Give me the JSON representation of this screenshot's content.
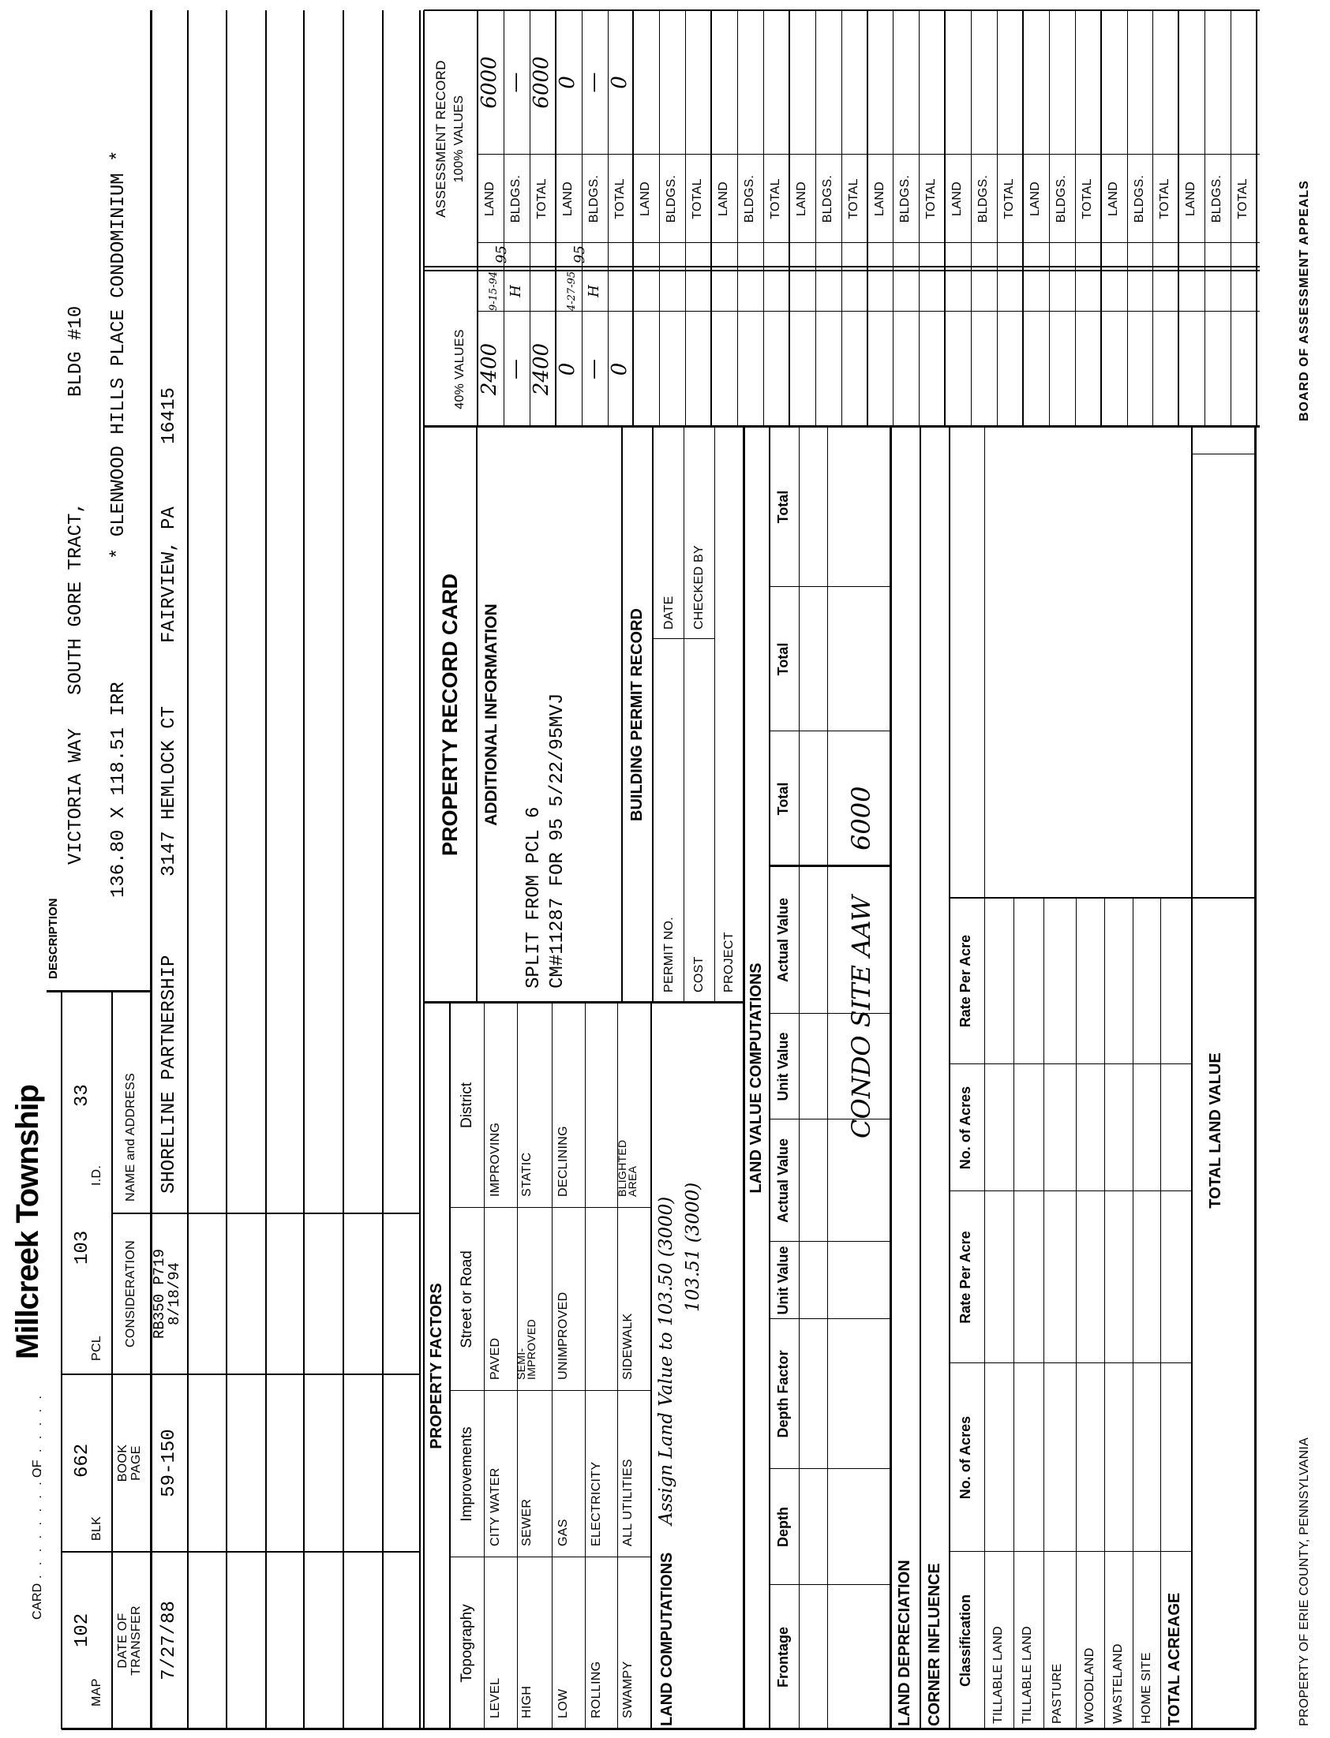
{
  "header": {
    "card_label": "CARD",
    "of_label": "OF",
    "township": "Millcreek Township"
  },
  "ids": {
    "map_label": "MAP",
    "map": "102",
    "blk_label": "BLK",
    "blk": "662",
    "pcl_label": "PCL",
    "pcl": "103",
    "id_label": "I.D.",
    "id": "33"
  },
  "transfer_headers": {
    "date": "DATE OF\nTRANSFER",
    "book_page": "BOOK\nPAGE",
    "consideration": "CONSIDERATION",
    "name_address": "NAME and ADDRESS"
  },
  "transfers": [
    {
      "date": "7/27/88",
      "book_page": "59-150",
      "consideration": "RB350 P719\n8/18/94",
      "name": "SHORELINE PARTNERSHIP",
      "street": "3147 HEMLOCK CT",
      "city": "FAIRVIEW, PA",
      "zip": "16415"
    }
  ],
  "description": {
    "label": "DESCRIPTION",
    "line1": [
      "VICTORIA WAY",
      "SOUTH GORE TRACT,",
      "BLDG #10"
    ],
    "line2": [
      "136.80 X 118.51 IRR",
      "* GLENWOOD HILLS PLACE CONDOMINIUM *"
    ]
  },
  "property_factors": {
    "title": "PROPERTY FACTORS",
    "headers": [
      "Topography",
      "Improvements",
      "Street or Road",
      "District"
    ],
    "rows": [
      [
        "LEVEL",
        "CITY WATER",
        "PAVED",
        "IMPROVING"
      ],
      [
        "HIGH",
        "SEWER",
        "SEMI-\nIMPROVED",
        "STATIC"
      ],
      [
        "LOW",
        "GAS",
        "UNIMPROVED",
        "DECLINING"
      ],
      [
        "ROLLING",
        "ELECTRICITY",
        "",
        ""
      ],
      [
        "SWAMPY",
        "ALL UTILITIES",
        "SIDEWALK",
        "BLIGHTED\nAREA"
      ]
    ]
  },
  "land_computations": {
    "label": "LAND COMPUTATIONS",
    "note_line1": "Assign Land Value to 103.50 (3000)",
    "note_line2": "103.51 (3000)"
  },
  "record_card": {
    "title": "PROPERTY RECORD CARD",
    "additional_title": "ADDITIONAL INFORMATION",
    "info_line1": "SPLIT FROM PCL 6",
    "info_line2": "CM#11287 FOR 95 5/22/95MVJ"
  },
  "building_permit": {
    "title": "BUILDING PERMIT RECORD",
    "permit_no": "PERMIT NO.",
    "date": "DATE",
    "cost": "COST",
    "checked_by": "CHECKED BY",
    "project": "PROJECT"
  },
  "land_value": {
    "title": "LAND VALUE COMPUTATIONS",
    "headers": [
      "Frontage",
      "Depth",
      "Depth Factor",
      "Unit Value",
      "Actual Value",
      "Unit Value",
      "Actual Value",
      "Total",
      "Total",
      "Total"
    ],
    "note": "CONDO SITE AAW",
    "total": "6000"
  },
  "land_depreciation": "LAND DEPRECIATION",
  "corner_influence": "CORNER INFLUENCE",
  "classification": {
    "headers": [
      "Classification",
      "No. of Acres",
      "Rate Per Acre",
      "No. of Acres",
      "Rate Per Acre"
    ],
    "rows": [
      "TILLABLE LAND",
      "TILLABLE LAND",
      "PASTURE",
      "WOODLAND",
      "WASTELAND",
      "HOME SITE"
    ],
    "total_acreage": "TOTAL ACREAGE",
    "total_land_value": "TOTAL LAND VALUE"
  },
  "assessment": {
    "forty_title": "40% VALUES",
    "title": "ASSESSMENT RECORD",
    "subtitle": "100% VALUES",
    "row_labels": [
      "LAND",
      "BLDGS.",
      "TOTAL"
    ],
    "groups": 10,
    "forty_values": [
      "2400",
      "—",
      "2400",
      "0",
      "—",
      "0"
    ],
    "hundred_values": [
      "6000",
      "—",
      "6000",
      "0",
      "—",
      "0"
    ],
    "entries": [
      {
        "date": "9-15-94",
        "initial": "H",
        "year": "95"
      },
      {
        "date": "4-27-95",
        "initial": "H",
        "year": "95"
      }
    ]
  },
  "footer": {
    "left": "PROPERTY OF ERIE COUNTY, PENNSYLVANIA",
    "right": "BOARD OF ASSESSMENT APPEALS"
  }
}
